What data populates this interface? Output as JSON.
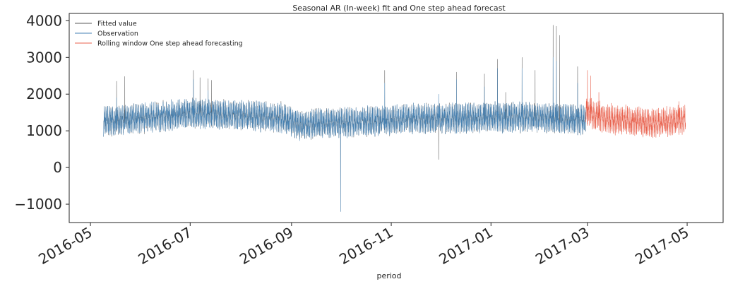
{
  "chart_data": {
    "type": "line",
    "title": "Seasonal AR (In-week) fit and One step ahead forecast",
    "xlabel": "period",
    "ylabel": "",
    "x_range": [
      "2016-04-18",
      "2017-05-23"
    ],
    "ylim": [
      -1500,
      4200
    ],
    "x_ticks": [
      "2016-05",
      "2016-07",
      "2016-09",
      "2016-11",
      "2017-01",
      "2017-03",
      "2017-05"
    ],
    "y_ticks": [
      4000,
      3000,
      2000,
      1000,
      0,
      -1000
    ],
    "grid": false,
    "legend_position": "top-left",
    "series": [
      {
        "name": "Fitted value",
        "color": "#5a5a5a",
        "x_start": "2016-05-09",
        "x_end": "2017-02-28",
        "baseline": [
          [
            0,
            1250
          ],
          [
            0.07,
            1330
          ],
          [
            0.18,
            1480
          ],
          [
            0.28,
            1420
          ],
          [
            0.37,
            1370
          ],
          [
            0.41,
            1150
          ],
          [
            0.45,
            1220
          ],
          [
            0.55,
            1250
          ],
          [
            0.63,
            1320
          ],
          [
            0.75,
            1350
          ],
          [
            0.87,
            1380
          ],
          [
            1,
            1300
          ]
        ],
        "spikes": [
          [
            "2016-05-17",
            2350
          ],
          [
            "2016-05-22",
            2480
          ],
          [
            "2016-07-03",
            2650
          ],
          [
            "2016-07-07",
            2450
          ],
          [
            "2016-07-12",
            2420
          ],
          [
            "2016-07-14",
            2380
          ],
          [
            "2016-10-01",
            -1200
          ],
          [
            "2016-10-28",
            2650
          ],
          [
            "2016-11-30",
            2550
          ],
          [
            "2016-11-30",
            220
          ],
          [
            "2016-12-11",
            2600
          ],
          [
            "2016-12-28",
            2550
          ],
          [
            "2017-01-05",
            2950
          ],
          [
            "2017-01-10",
            2050
          ],
          [
            "2017-01-20",
            3000
          ],
          [
            "2017-01-28",
            2650
          ],
          [
            "2017-02-08",
            3880
          ],
          [
            "2017-02-10",
            3850
          ],
          [
            "2017-02-12",
            3600
          ],
          [
            "2017-02-23",
            2750
          ]
        ]
      },
      {
        "name": "Observation",
        "color": "#4682b4",
        "x_start": "2016-05-09",
        "x_end": "2017-02-28",
        "baseline": [
          [
            0,
            1250
          ],
          [
            0.07,
            1330
          ],
          [
            0.18,
            1480
          ],
          [
            0.28,
            1420
          ],
          [
            0.37,
            1370
          ],
          [
            0.41,
            1150
          ],
          [
            0.45,
            1220
          ],
          [
            0.55,
            1250
          ],
          [
            0.63,
            1320
          ],
          [
            0.75,
            1350
          ],
          [
            0.87,
            1380
          ],
          [
            1,
            1300
          ]
        ],
        "spikes": [
          [
            "2016-05-17",
            1900
          ],
          [
            "2016-07-03",
            2400
          ],
          [
            "2016-07-12",
            2100
          ],
          [
            "2016-10-01",
            -1200
          ],
          [
            "2016-10-28",
            2300
          ],
          [
            "2016-11-30",
            2000
          ],
          [
            "2016-12-11",
            2400
          ],
          [
            "2016-12-28",
            2200
          ],
          [
            "2017-01-05",
            2700
          ],
          [
            "2017-01-20",
            2700
          ],
          [
            "2017-02-08",
            3000
          ],
          [
            "2017-02-10",
            2900
          ],
          [
            "2017-02-23",
            2300
          ]
        ]
      },
      {
        "name": "Rolling window One step ahead forecasting",
        "color": "#e8604c",
        "x_start": "2017-02-28",
        "x_end": "2017-04-30",
        "baseline": [
          [
            0,
            1550
          ],
          [
            0.08,
            1420
          ],
          [
            0.25,
            1320
          ],
          [
            0.45,
            1280
          ],
          [
            0.65,
            1200
          ],
          [
            0.82,
            1260
          ],
          [
            1,
            1320
          ]
        ],
        "spikes": [
          [
            "2017-03-01",
            2650
          ],
          [
            "2017-03-03",
            2500
          ],
          [
            "2017-03-08",
            2050
          ],
          [
            "2017-04-26",
            1800
          ]
        ]
      }
    ]
  }
}
